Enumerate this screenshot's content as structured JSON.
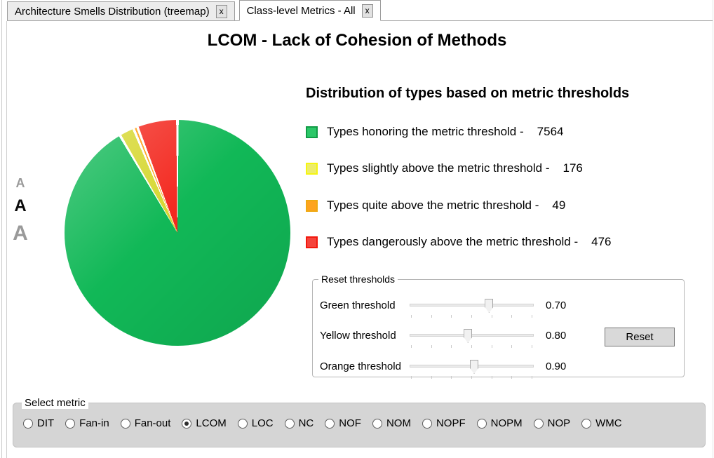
{
  "tabs": [
    {
      "label": "Architecture Smells Distribution (treemap)",
      "close_label": "x",
      "active": false
    },
    {
      "label": "Class-level Metrics - All",
      "close_label": "x",
      "active": true
    }
  ],
  "title": "LCOM - Lack of Cohesion of Methods",
  "font_controls": {
    "small": "A",
    "medium": "A",
    "large": "A"
  },
  "chart_data": {
    "type": "pie",
    "title": "LCOM - Lack of Cohesion of Methods",
    "start_angle_deg": 0,
    "direction": "clockwise",
    "gap_deg": 1.3,
    "slices": [
      {
        "label": "Types honoring the metric threshold",
        "value": 7564,
        "color": "#11b857"
      },
      {
        "label": "Types slightly above the metric threshold",
        "value": 176,
        "color": "#d6d72f"
      },
      {
        "label": "Types quite above the metric threshold",
        "value": 49,
        "color": "#ff9e11"
      },
      {
        "label": "Types dangerously above the metric threshold",
        "value": 476,
        "color": "#f3281f"
      }
    ]
  },
  "legend": {
    "header": "Distribution of types based on metric thresholds",
    "items": [
      {
        "label": "Types honoring the metric threshold -",
        "count": "7564",
        "fill": "#2bc768",
        "border": "#119b46"
      },
      {
        "label": "Types slightly above the metric threshold -",
        "count": "176",
        "fill": "#eded6a",
        "border": "#f5f511"
      },
      {
        "label": "Types quite above the metric threshold -",
        "count": "49",
        "fill": "#fea31f",
        "border": "#efa912"
      },
      {
        "label": "Types dangerously above the metric threshold -",
        "count": "476",
        "fill": "#f5433b",
        "border": "#f2180d"
      }
    ]
  },
  "thresholds": {
    "group_label": "Reset thresholds",
    "reset_label": "Reset",
    "rows": [
      {
        "label": "Green threshold",
        "value": "0.70",
        "position": 0.64
      },
      {
        "label": "Yellow threshold",
        "value": "0.80",
        "position": 0.47
      },
      {
        "label": "Orange threshold",
        "value": "0.90",
        "position": 0.52
      }
    ]
  },
  "metric_selector": {
    "group_label": "Select metric",
    "options": [
      {
        "label": "DIT",
        "selected": false
      },
      {
        "label": "Fan-in",
        "selected": false
      },
      {
        "label": "Fan-out",
        "selected": false
      },
      {
        "label": "LCOM",
        "selected": true
      },
      {
        "label": "LOC",
        "selected": false
      },
      {
        "label": "NC",
        "selected": false
      },
      {
        "label": "NOF",
        "selected": false
      },
      {
        "label": "NOM",
        "selected": false
      },
      {
        "label": "NOPF",
        "selected": false
      },
      {
        "label": "NOPM",
        "selected": false
      },
      {
        "label": "NOP",
        "selected": false
      },
      {
        "label": "WMC",
        "selected": false
      }
    ]
  }
}
